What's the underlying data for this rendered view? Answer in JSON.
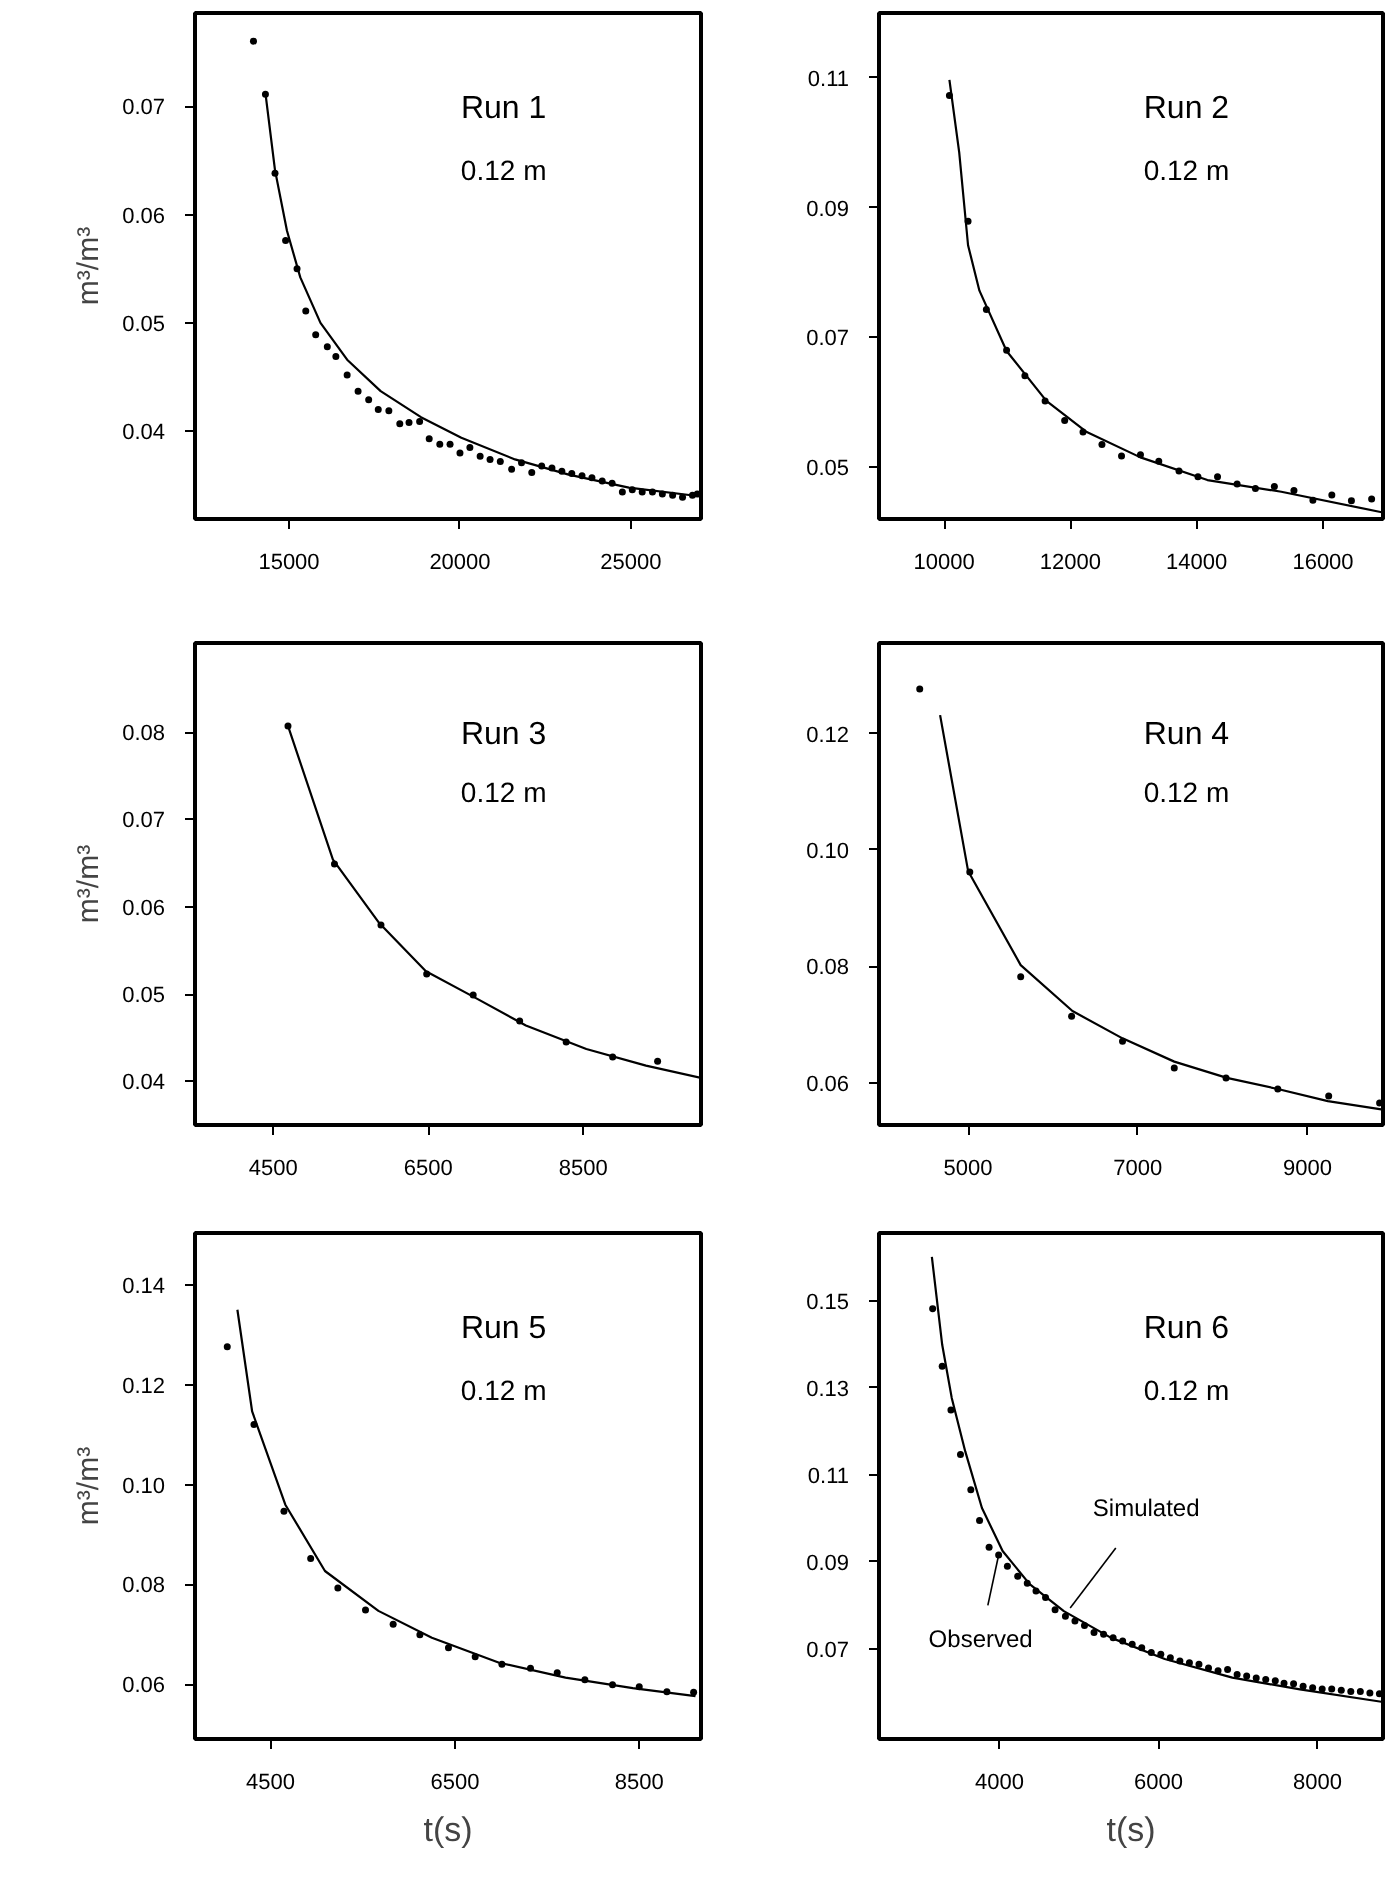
{
  "chart_data": [
    {
      "type": "scatter",
      "title": "Run 1",
      "subtitle": "0.12 m",
      "ylabel": "m³/m³",
      "xlim": [
        12250,
        27050
      ],
      "ylim": [
        0.0319,
        0.0786
      ],
      "xticks": [
        15000,
        20000,
        25000
      ],
      "yticks": [
        0.04,
        0.05,
        0.06,
        0.07
      ],
      "series": [
        {
          "marker": "circle",
          "color": "#000000",
          "x": [
            13960,
            14310,
            14590,
            14900,
            15235,
            15490,
            15780,
            16120,
            16370,
            16700,
            17020,
            17330,
            17610,
            17920,
            18240,
            18510,
            18820,
            19100,
            19410,
            19710,
            20000,
            20290,
            20590,
            20880,
            21180,
            21510,
            21800,
            22100,
            22390,
            22690,
            22980,
            23270,
            23570,
            23860,
            24160,
            24450,
            24750,
            25040,
            25330,
            25630,
            25920,
            26220,
            26510,
            26800,
            26940
          ],
          "values": [
            0.076,
            0.0711,
            0.0638,
            0.0576,
            0.055,
            0.0511,
            0.0489,
            0.0478,
            0.0469,
            0.0452,
            0.0437,
            0.0429,
            0.042,
            0.0419,
            0.0407,
            0.0408,
            0.0409,
            0.0393,
            0.0388,
            0.0388,
            0.038,
            0.0385,
            0.0377,
            0.0374,
            0.0372,
            0.0365,
            0.0371,
            0.0362,
            0.0368,
            0.0366,
            0.0363,
            0.0361,
            0.0359,
            0.0357,
            0.0354,
            0.0352,
            0.0344,
            0.0346,
            0.0344,
            0.0344,
            0.0342,
            0.0341,
            0.0339,
            0.0341,
            0.0342
          ]
        },
        {
          "type": "line",
          "color": "#000000",
          "x": [
            14310,
            14590,
            14940,
            15330,
            15920,
            16700,
            17680,
            18860,
            20040,
            21610,
            23180,
            24940,
            27000
          ],
          "values": [
            0.0712,
            0.0641,
            0.0585,
            0.0542,
            0.05,
            0.0466,
            0.0437,
            0.0413,
            0.0394,
            0.0374,
            0.036,
            0.0348,
            0.034
          ]
        }
      ]
    },
    {
      "type": "scatter",
      "title": "Run 2",
      "subtitle": "0.12 m",
      "xlim": [
        8970,
        16950
      ],
      "ylim": [
        0.042,
        0.12
      ],
      "xticks": [
        10000,
        12000,
        14000,
        16000
      ],
      "yticks": [
        0.05,
        0.07,
        0.09,
        0.11
      ],
      "series": [
        {
          "marker": "circle",
          "color": "#000000",
          "x": [
            10085,
            10380,
            10670,
            10990,
            11280,
            11600,
            11910,
            12200,
            12500,
            12810,
            13110,
            13400,
            13720,
            14020,
            14330,
            14640,
            14930,
            15230,
            15540,
            15840,
            16140,
            16450,
            16770
          ],
          "values": [
            0.1073,
            0.0879,
            0.0743,
            0.068,
            0.0641,
            0.0602,
            0.0572,
            0.0554,
            0.0535,
            0.0517,
            0.0519,
            0.0509,
            0.0494,
            0.0485,
            0.0485,
            0.0474,
            0.0467,
            0.047,
            0.0464,
            0.0449,
            0.0457,
            0.0448,
            0.0451
          ]
        },
        {
          "type": "line",
          "color": "#000000",
          "x": [
            10085,
            10240,
            10380,
            10560,
            10990,
            11620,
            12260,
            13110,
            14170,
            15340,
            16950
          ],
          "values": [
            0.1097,
            0.0985,
            0.0842,
            0.0772,
            0.0679,
            0.0602,
            0.0554,
            0.0515,
            0.048,
            0.0462,
            0.043
          ]
        }
      ]
    },
    {
      "type": "scatter",
      "title": "Run 3",
      "subtitle": "0.12 m",
      "ylabel": "m³/m³",
      "xlim": [
        3490,
        10020
      ],
      "ylim": [
        0.035,
        0.0902
      ],
      "xticks": [
        4500,
        6500,
        8500
      ],
      "yticks": [
        0.04,
        0.05,
        0.06,
        0.07,
        0.08
      ],
      "series": [
        {
          "marker": "circle",
          "color": "#000000",
          "x": [
            4690,
            5290,
            5890,
            6480,
            7080,
            7680,
            8280,
            8880,
            9460
          ],
          "values": [
            0.0807,
            0.0649,
            0.0579,
            0.0523,
            0.0499,
            0.0469,
            0.0445,
            0.0428,
            0.0423
          ]
        },
        {
          "type": "line",
          "color": "#000000",
          "x": [
            4690,
            5270,
            5870,
            6470,
            7080,
            7760,
            8540,
            9310,
            10020
          ],
          "values": [
            0.0807,
            0.0654,
            0.0581,
            0.0526,
            0.0497,
            0.0464,
            0.0437,
            0.0418,
            0.0404
          ]
        }
      ]
    },
    {
      "type": "scatter",
      "title": "Run 4",
      "subtitle": "0.12 m",
      "xlim": [
        3950,
        9890
      ],
      "ylim": [
        0.0527,
        0.1356
      ],
      "xticks": [
        5000,
        7000,
        9000
      ],
      "yticks": [
        0.06,
        0.08,
        {
          "value": 0.1,
          "label": "0.10"
        },
        0.12
      ],
      "series": [
        {
          "marker": "circle",
          "color": "#000000",
          "x": [
            4430,
            5020,
            5620,
            6220,
            6820,
            7430,
            8040,
            8650,
            9250,
            9850
          ],
          "values": [
            0.1277,
            0.0962,
            0.0782,
            0.0714,
            0.0671,
            0.0625,
            0.0608,
            0.0589,
            0.0577,
            0.0565
          ]
        },
        {
          "type": "line",
          "color": "#000000",
          "x": [
            4670,
            5000,
            5620,
            6230,
            6820,
            7430,
            8050,
            8650,
            9240,
            9870
          ],
          "values": [
            0.1232,
            0.0964,
            0.0802,
            0.0723,
            0.0676,
            0.0636,
            0.0608,
            0.0589,
            0.0568,
            0.0554
          ]
        }
      ]
    },
    {
      "type": "scatter",
      "title": "Run 5",
      "subtitle": "0.12 m",
      "xlabel": "t(s)",
      "ylabel": "m³/m³",
      "xlim": [
        3680,
        9170
      ],
      "ylim": [
        0.049,
        0.1505
      ],
      "xticks": [
        4500,
        6500,
        8500
      ],
      "yticks": [
        0.06,
        0.08,
        {
          "value": 0.1,
          "label": "0.10"
        },
        0.12,
        0.14
      ],
      "series": [
        {
          "marker": "circle",
          "color": "#000000",
          "x": [
            4030,
            4320,
            4645,
            4935,
            5230,
            5530,
            5830,
            6120,
            6430,
            6720,
            7010,
            7320,
            7610,
            7910,
            8210,
            8500,
            8800,
            9090
          ],
          "values": [
            0.1277,
            0.1121,
            0.0947,
            0.0852,
            0.0793,
            0.0749,
            0.072,
            0.0699,
            0.0673,
            0.0655,
            0.064,
            0.0632,
            0.0623,
            0.0609,
            0.0599,
            0.0595,
            0.0585,
            0.0584
          ]
        },
        {
          "type": "line",
          "color": "#000000",
          "x": [
            4140,
            4300,
            4660,
            5090,
            5670,
            6250,
            6980,
            7700,
            8430,
            9110
          ],
          "values": [
            0.1351,
            0.1147,
            0.096,
            0.0827,
            0.0747,
            0.0693,
            0.0643,
            0.0613,
            0.0592,
            0.0576
          ]
        }
      ]
    },
    {
      "type": "scatter",
      "title": "Run 6",
      "subtitle": "0.12 m",
      "xlabel": "t(s)",
      "xlim": [
        2485,
        8825
      ],
      "ylim": [
        0.0493,
        0.1656
      ],
      "xticks": [
        4000,
        6000,
        8000
      ],
      "yticks": [
        0.07,
        0.09,
        0.11,
        0.13,
        0.15
      ],
      "annotations": [
        {
          "text": "Simulated",
          "x": 4890,
          "y": 0.0794
        },
        {
          "text": "Observed",
          "x": 3990,
          "y": 0.0916
        }
      ],
      "series": [
        {
          "marker": "circle",
          "color": "#000000",
          "x": [
            3160,
            3280,
            3390,
            3510,
            3640,
            3750,
            3870,
            3990,
            4100,
            4230,
            4350,
            4460,
            4580,
            4700,
            4830,
            4950,
            5070,
            5190,
            5310,
            5430,
            5550,
            5670,
            5790,
            5910,
            6030,
            6150,
            6270,
            6390,
            6510,
            6630,
            6750,
            6870,
            6990,
            7110,
            7230,
            7350,
            7470,
            7580,
            7700,
            7820,
            7940,
            8060,
            8180,
            8300,
            8420,
            8540,
            8660,
            8780
          ],
          "values": [
            0.1482,
            0.135,
            0.1249,
            0.1147,
            0.1066,
            0.0995,
            0.0934,
            0.0916,
            0.089,
            0.0867,
            0.0851,
            0.0833,
            0.0818,
            0.079,
            0.0775,
            0.0764,
            0.0754,
            0.0738,
            0.0734,
            0.0726,
            0.0718,
            0.0711,
            0.0703,
            0.0692,
            0.0688,
            0.068,
            0.0672,
            0.0668,
            0.0665,
            0.0656,
            0.065,
            0.0653,
            0.0641,
            0.0638,
            0.0633,
            0.063,
            0.0627,
            0.0621,
            0.062,
            0.0614,
            0.0611,
            0.0608,
            0.0608,
            0.0605,
            0.0602,
            0.0602,
            0.0599,
            0.0597
          ]
        },
        {
          "type": "line",
          "color": "#000000",
          "x": [
            3150,
            3280,
            3400,
            3570,
            3780,
            4040,
            4380,
            4810,
            5400,
            6080,
            6930,
            7780,
            8825
          ],
          "values": [
            0.1601,
            0.1399,
            0.1277,
            0.1154,
            0.1024,
            0.0925,
            0.0849,
            0.0787,
            0.0726,
            0.0677,
            0.0634,
            0.0607,
            0.0578
          ]
        }
      ]
    }
  ]
}
